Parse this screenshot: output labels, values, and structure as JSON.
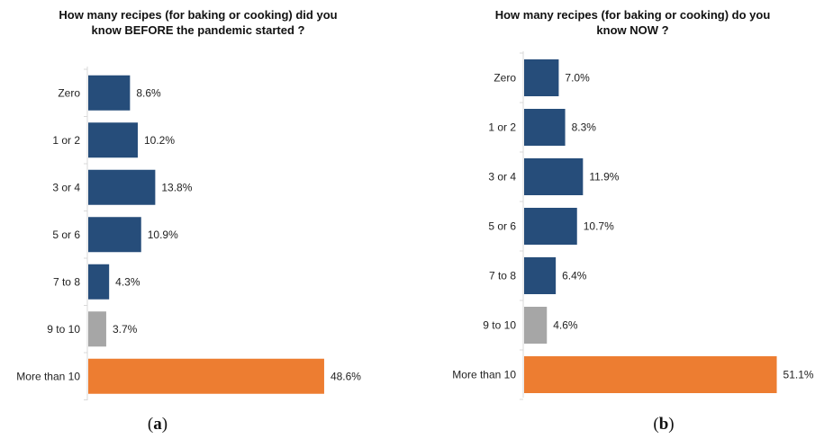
{
  "chart_data": [
    {
      "type": "bar",
      "orientation": "horizontal",
      "title": "How many recipes (for baking or cooking) did you\nknow BEFORE the pandemic started ?",
      "panel_label": "a",
      "categories": [
        "Zero",
        "1 or 2",
        "3 or 4",
        "5 or 6",
        "7 to 8",
        "9 to 10",
        "More than 10"
      ],
      "values": [
        8.6,
        10.2,
        13.8,
        10.9,
        4.3,
        3.7,
        48.6
      ],
      "value_labels": [
        "8.6%",
        "10.2%",
        "13.8%",
        "10.9%",
        "4.3%",
        "3.7%",
        "48.6%"
      ],
      "bar_colors": [
        "#264d7a",
        "#264d7a",
        "#264d7a",
        "#264d7a",
        "#264d7a",
        "#a6a6a6",
        "#ed7d31"
      ],
      "xlim": [
        0,
        55
      ],
      "xlabel": "",
      "ylabel": "",
      "grid": false
    },
    {
      "type": "bar",
      "orientation": "horizontal",
      "title": "How many recipes (for baking or cooking) do you\nknow NOW ?",
      "panel_label": "b",
      "categories": [
        "Zero",
        "1 or 2",
        "3 or 4",
        "5 or 6",
        "7 to 8",
        "9 to 10",
        "More than 10"
      ],
      "values": [
        7.0,
        8.3,
        11.9,
        10.7,
        6.4,
        4.6,
        51.1
      ],
      "value_labels": [
        "7.0%",
        "8.3%",
        "11.9%",
        "10.7%",
        "6.4%",
        "4.6%",
        "51.1%"
      ],
      "bar_colors": [
        "#264d7a",
        "#264d7a",
        "#264d7a",
        "#264d7a",
        "#264d7a",
        "#a6a6a6",
        "#ed7d31"
      ],
      "xlim": [
        0,
        55
      ],
      "xlabel": "",
      "ylabel": "",
      "grid": false
    }
  ]
}
